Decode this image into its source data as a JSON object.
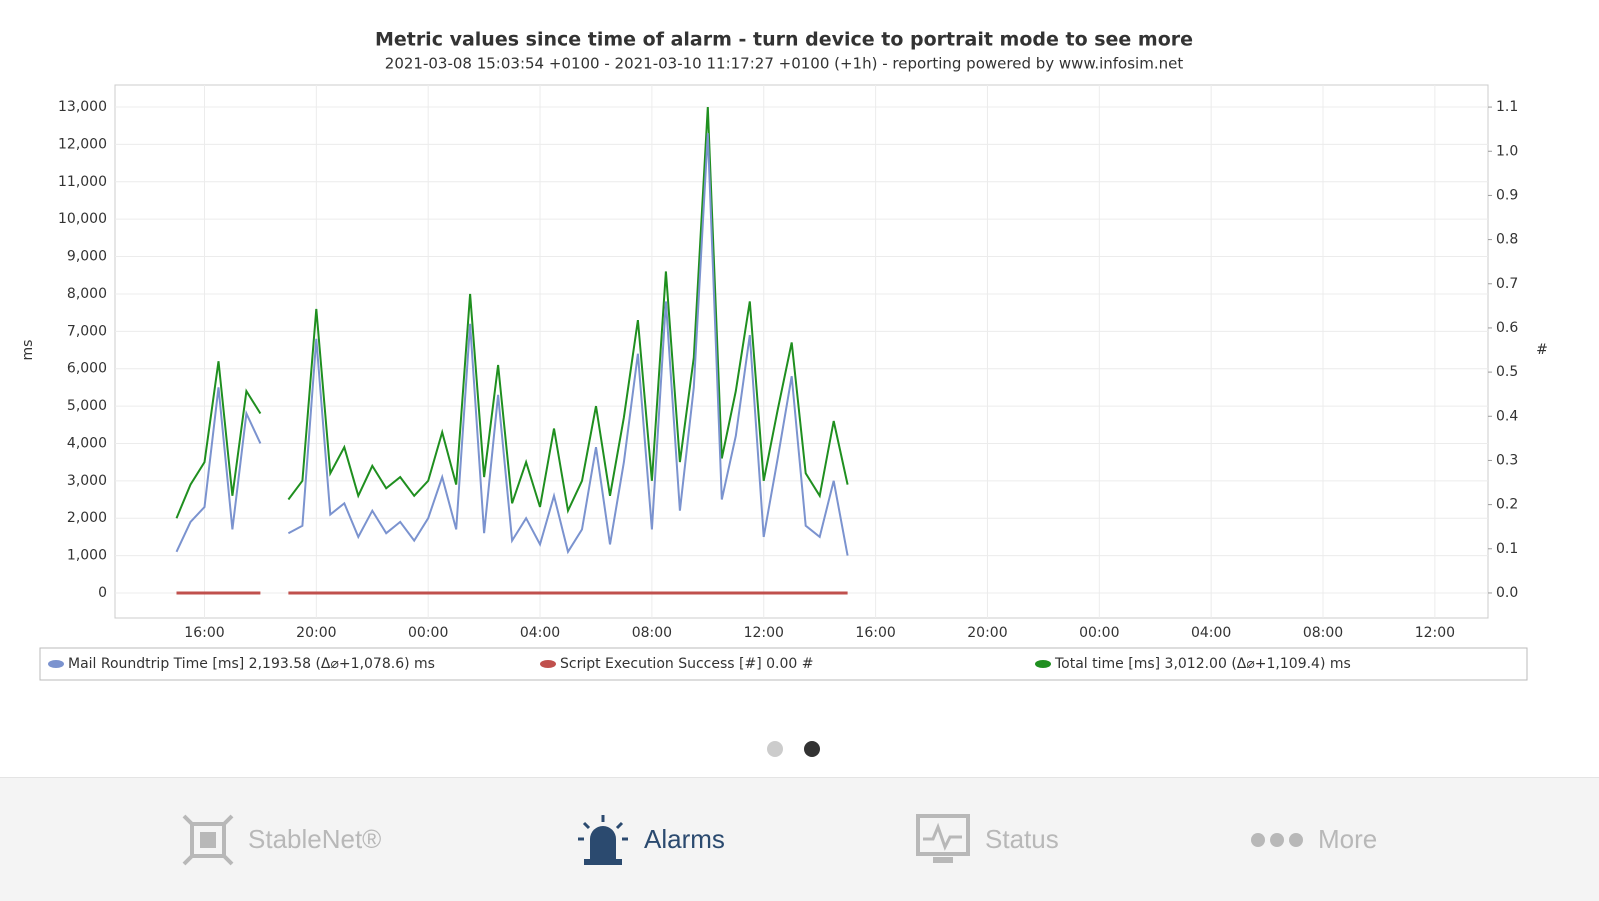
{
  "chart_data": {
    "type": "line",
    "title": "Metric values since time of alarm - turn device to portrait mode to see more",
    "subtitle": "2021-03-08 15:03:54 +0100 - 2021-03-10 11:17:27 +0100 (+1h) - reporting powered by www.infosim.net",
    "y_label": "ms",
    "y2_label": "#",
    "x": [
      15,
      15.5,
      16,
      16.5,
      17,
      17.5,
      18,
      18.5,
      19,
      19.5,
      20,
      20.5,
      21,
      21.5,
      22,
      22.5,
      23,
      23.5,
      24,
      24.5,
      25,
      25.5,
      26,
      26.5,
      27,
      27.5,
      28,
      28.5,
      29,
      29.5,
      30,
      30.5,
      31,
      31.5,
      32,
      32.5,
      33,
      33.5,
      34,
      34.5,
      35,
      35.5,
      36,
      36.5,
      37,
      37.5,
      38,
      38.5,
      39
    ],
    "series": [
      {
        "name": "Mail Roundtrip Time [ms] 2,193.58 (Δ⌀+1,078.6) ms",
        "color": "#7b93cf",
        "values": [
          1100,
          1900,
          2300,
          5500,
          1700,
          4800,
          4000,
          null,
          1600,
          1800,
          6800,
          2100,
          2400,
          1500,
          2200,
          1600,
          1900,
          1400,
          2000,
          3100,
          1700,
          7200,
          1600,
          5300,
          1400,
          2000,
          1300,
          2600,
          1100,
          1700,
          3900,
          1300,
          3500,
          6400,
          1700,
          7800,
          2200,
          5500,
          12300,
          2500,
          4200,
          6900,
          1500,
          3600,
          5800,
          1800,
          1500,
          3000,
          1000
        ]
      },
      {
        "name": "Script Execution Success [#] 0.00 #",
        "color": "#c0504d",
        "axis": "y2",
        "values": [
          0,
          0,
          0,
          0,
          0,
          0,
          0,
          null,
          0,
          0,
          0,
          0,
          0,
          0,
          0,
          0,
          0,
          0,
          0,
          0,
          0,
          0,
          0,
          0,
          0,
          0,
          0,
          0,
          0,
          0,
          0,
          0,
          0,
          0,
          0,
          0,
          0,
          0,
          0,
          0,
          0,
          0,
          0,
          0,
          0,
          0,
          0,
          0,
          0
        ]
      },
      {
        "name": "Total time [ms] 3,012.00 (Δ⌀+1,109.4) ms",
        "color": "#1f8f1f",
        "values": [
          2000,
          2900,
          3500,
          6200,
          2600,
          5400,
          4800,
          null,
          2500,
          3000,
          7600,
          3200,
          3900,
          2600,
          3400,
          2800,
          3100,
          2600,
          3000,
          4300,
          2900,
          8000,
          3100,
          6100,
          2400,
          3500,
          2300,
          4400,
          2200,
          3000,
          5000,
          2600,
          4700,
          7300,
          3000,
          8600,
          3500,
          6300,
          13000,
          3600,
          5400,
          7800,
          3000,
          4900,
          6700,
          3200,
          2600,
          4600,
          2900
        ]
      }
    ],
    "xlim": [
      12.8,
      61.9
    ],
    "xticks": [
      {
        "value": 16,
        "label": "16:00"
      },
      {
        "value": 20,
        "label": "20:00"
      },
      {
        "value": 24,
        "label": "00:00"
      },
      {
        "value": 28,
        "label": "04:00"
      },
      {
        "value": 32,
        "label": "08:00"
      },
      {
        "value": 36,
        "label": "12:00"
      },
      {
        "value": 40,
        "label": "16:00"
      },
      {
        "value": 44,
        "label": "20:00"
      },
      {
        "value": 48,
        "label": "00:00"
      },
      {
        "value": 52,
        "label": "04:00"
      },
      {
        "value": 56,
        "label": "08:00"
      },
      {
        "value": 60,
        "label": "12:00"
      }
    ],
    "ylim": [
      -670,
      13590
    ],
    "yticks": [
      0,
      {
        "value": 1000,
        "label": "1,000"
      },
      {
        "value": 2000,
        "label": "2,000"
      },
      {
        "value": 3000,
        "label": "3,000"
      },
      {
        "value": 4000,
        "label": "4,000"
      },
      {
        "value": 5000,
        "label": "5,000"
      },
      {
        "value": 6000,
        "label": "6,000"
      },
      {
        "value": 7000,
        "label": "7,000"
      },
      {
        "value": 8000,
        "label": "8,000"
      },
      {
        "value": 9000,
        "label": "9,000"
      },
      {
        "value": 10000,
        "label": "10,000"
      },
      {
        "value": 11000,
        "label": "11,000"
      },
      {
        "value": 12000,
        "label": "12,000"
      },
      {
        "value": 13000,
        "label": "13,000"
      }
    ],
    "y2lim": [
      -0.0567,
      1.15
    ],
    "y2ticks": [
      {
        "value": 0,
        "label": "0.0"
      },
      0.1,
      0.2,
      0.3,
      0.4,
      0.5,
      0.6,
      0.7,
      0.8,
      0.9,
      {
        "value": 1,
        "label": "1.0"
      },
      1.1
    ],
    "grid": true
  },
  "tab_bar": {
    "items": [
      {
        "label": "StableNet®"
      },
      {
        "label": "Alarms"
      },
      {
        "label": "Status"
      },
      {
        "label": "More"
      }
    ]
  }
}
